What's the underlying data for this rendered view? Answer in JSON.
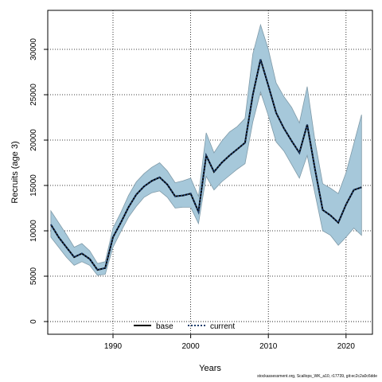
{
  "chart_data": {
    "type": "line",
    "xlabel": "Years",
    "ylabel": "Recruits (age 3)",
    "xlim": [
      1981.6,
      2023.4
    ],
    "ylim": [
      -1400,
      34300
    ],
    "x_ticks": [
      1990,
      2000,
      2010,
      2020
    ],
    "y_ticks": [
      0,
      5000,
      10000,
      15000,
      20000,
      25000,
      30000
    ],
    "grid": true,
    "grid_style": "dotted",
    "legend_position": "bottom-center",
    "band_color": "#a6c8da",
    "band_edge_color": "#7f9aa8",
    "x": [
      1982,
      1983,
      1984,
      1985,
      1986,
      1987,
      1988,
      1989,
      1990,
      1991,
      1992,
      1993,
      1994,
      1995,
      1996,
      1997,
      1998,
      1999,
      2000,
      2001,
      2002,
      2003,
      2004,
      2005,
      2006,
      2007,
      2008,
      2009,
      2010,
      2011,
      2012,
      2013,
      2014,
      2015,
      2016,
      2017,
      2018,
      2019,
      2020,
      2021,
      2022
    ],
    "series": [
      {
        "name": "base",
        "color": "#000000",
        "dash": "solid",
        "values": [
          10700,
          9300,
          8200,
          7100,
          7500,
          6900,
          5700,
          5900,
          9300,
          10900,
          12600,
          14000,
          14900,
          15500,
          15900,
          15100,
          13800,
          13900,
          14100,
          12100,
          18300,
          16500,
          17500,
          18300,
          19000,
          19700,
          25000,
          28900,
          26000,
          23000,
          21300,
          19900,
          18600,
          21700,
          16800,
          12300,
          11700,
          10900,
          12900,
          14500,
          14800
        ]
      },
      {
        "name": "current",
        "color": "#1f3f6e",
        "dash": "dotted",
        "values": [
          10700,
          9300,
          8200,
          7100,
          7500,
          6900,
          5700,
          5900,
          9300,
          10900,
          12600,
          14000,
          14900,
          15500,
          15900,
          15100,
          13800,
          13900,
          14100,
          12100,
          18300,
          16500,
          17500,
          18300,
          19000,
          19700,
          25000,
          28900,
          26000,
          23000,
          21300,
          19900,
          18600,
          21700,
          16800,
          12300,
          11700,
          10900,
          12900,
          14500,
          14800
        ]
      }
    ],
    "interval_upper": [
      12200,
      10900,
      9600,
      8200,
      8600,
      7800,
      6400,
      6600,
      10300,
      12000,
      13900,
      15400,
      16300,
      17000,
      17500,
      16600,
      15300,
      15500,
      15800,
      13800,
      20800,
      18600,
      19900,
      20900,
      21500,
      22400,
      29500,
      32700,
      30000,
      26300,
      24800,
      23600,
      21900,
      25900,
      19900,
      15200,
      14700,
      14100,
      16400,
      19600,
      22800
    ],
    "interval_lower": [
      9300,
      8200,
      7100,
      6200,
      6600,
      6200,
      5100,
      5200,
      8200,
      9900,
      11500,
      12700,
      13700,
      14200,
      14400,
      13700,
      12500,
      12600,
      12600,
      10800,
      16000,
      14500,
      15400,
      16100,
      16800,
      17400,
      22000,
      25300,
      22700,
      19800,
      18800,
      17300,
      15800,
      18300,
      14100,
      10000,
      9500,
      8400,
      9300,
      10300,
      9500
    ]
  },
  "legend": {
    "base_label": "base",
    "current_label": "current"
  },
  "footer_text": "stockassessment.org, Scallops_WK_a10, r17739, git:ec2c2a0c6dde"
}
